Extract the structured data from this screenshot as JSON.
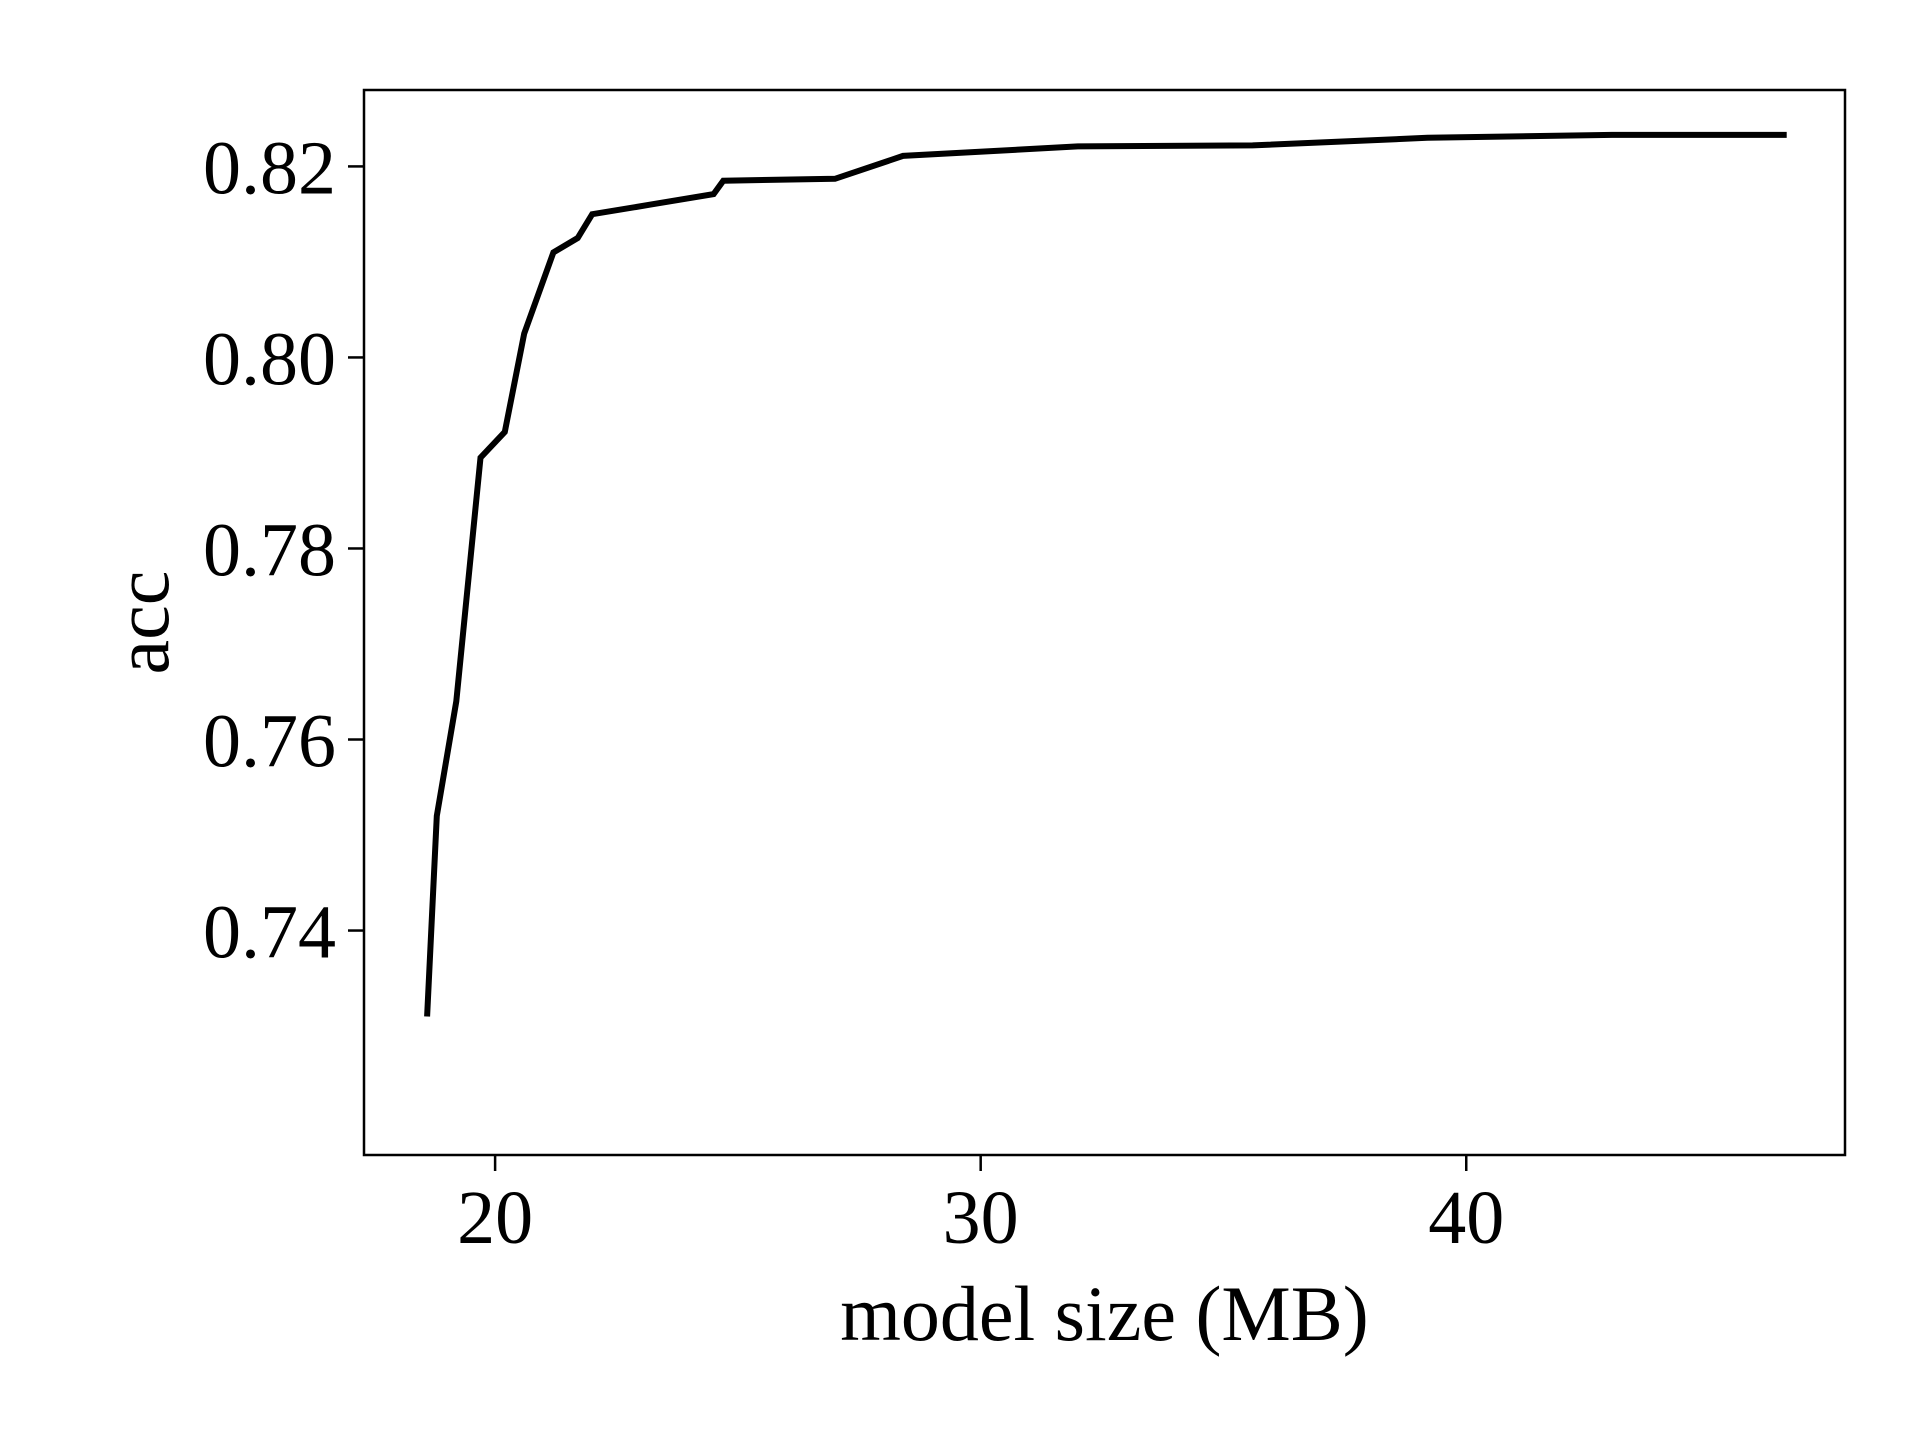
{
  "chart_data": {
    "type": "line",
    "title": "",
    "xlabel": "model size (MB)",
    "ylabel": "acc",
    "xlim": [
      17.3,
      47.8
    ],
    "ylim": [
      0.7165,
      0.828
    ],
    "xticks": [
      20,
      30,
      40
    ],
    "xtick_labels": [
      "20",
      "30",
      "40"
    ],
    "yticks": [
      0.74,
      0.76,
      0.78,
      0.8,
      0.82
    ],
    "ytick_labels": [
      "0.74",
      "0.76",
      "0.78",
      "0.80",
      "0.82"
    ],
    "grid": false,
    "legend": "none",
    "series": [
      {
        "color": "#000000",
        "x": [
          18.6,
          18.8,
          19.2,
          19.7,
          20.2,
          20.6,
          21.2,
          21.7,
          22.0,
          23.2,
          24.5,
          24.7,
          27.0,
          28.4,
          32.0,
          35.6,
          39.2,
          43.0,
          46.6
        ],
        "y": [
          0.731,
          0.752,
          0.764,
          0.7895,
          0.7922,
          0.8025,
          0.811,
          0.8125,
          0.815,
          0.816,
          0.8171,
          0.8185,
          0.8187,
          0.8211,
          0.8221,
          0.8222,
          0.823,
          0.8233,
          0.8233
        ]
      }
    ]
  }
}
